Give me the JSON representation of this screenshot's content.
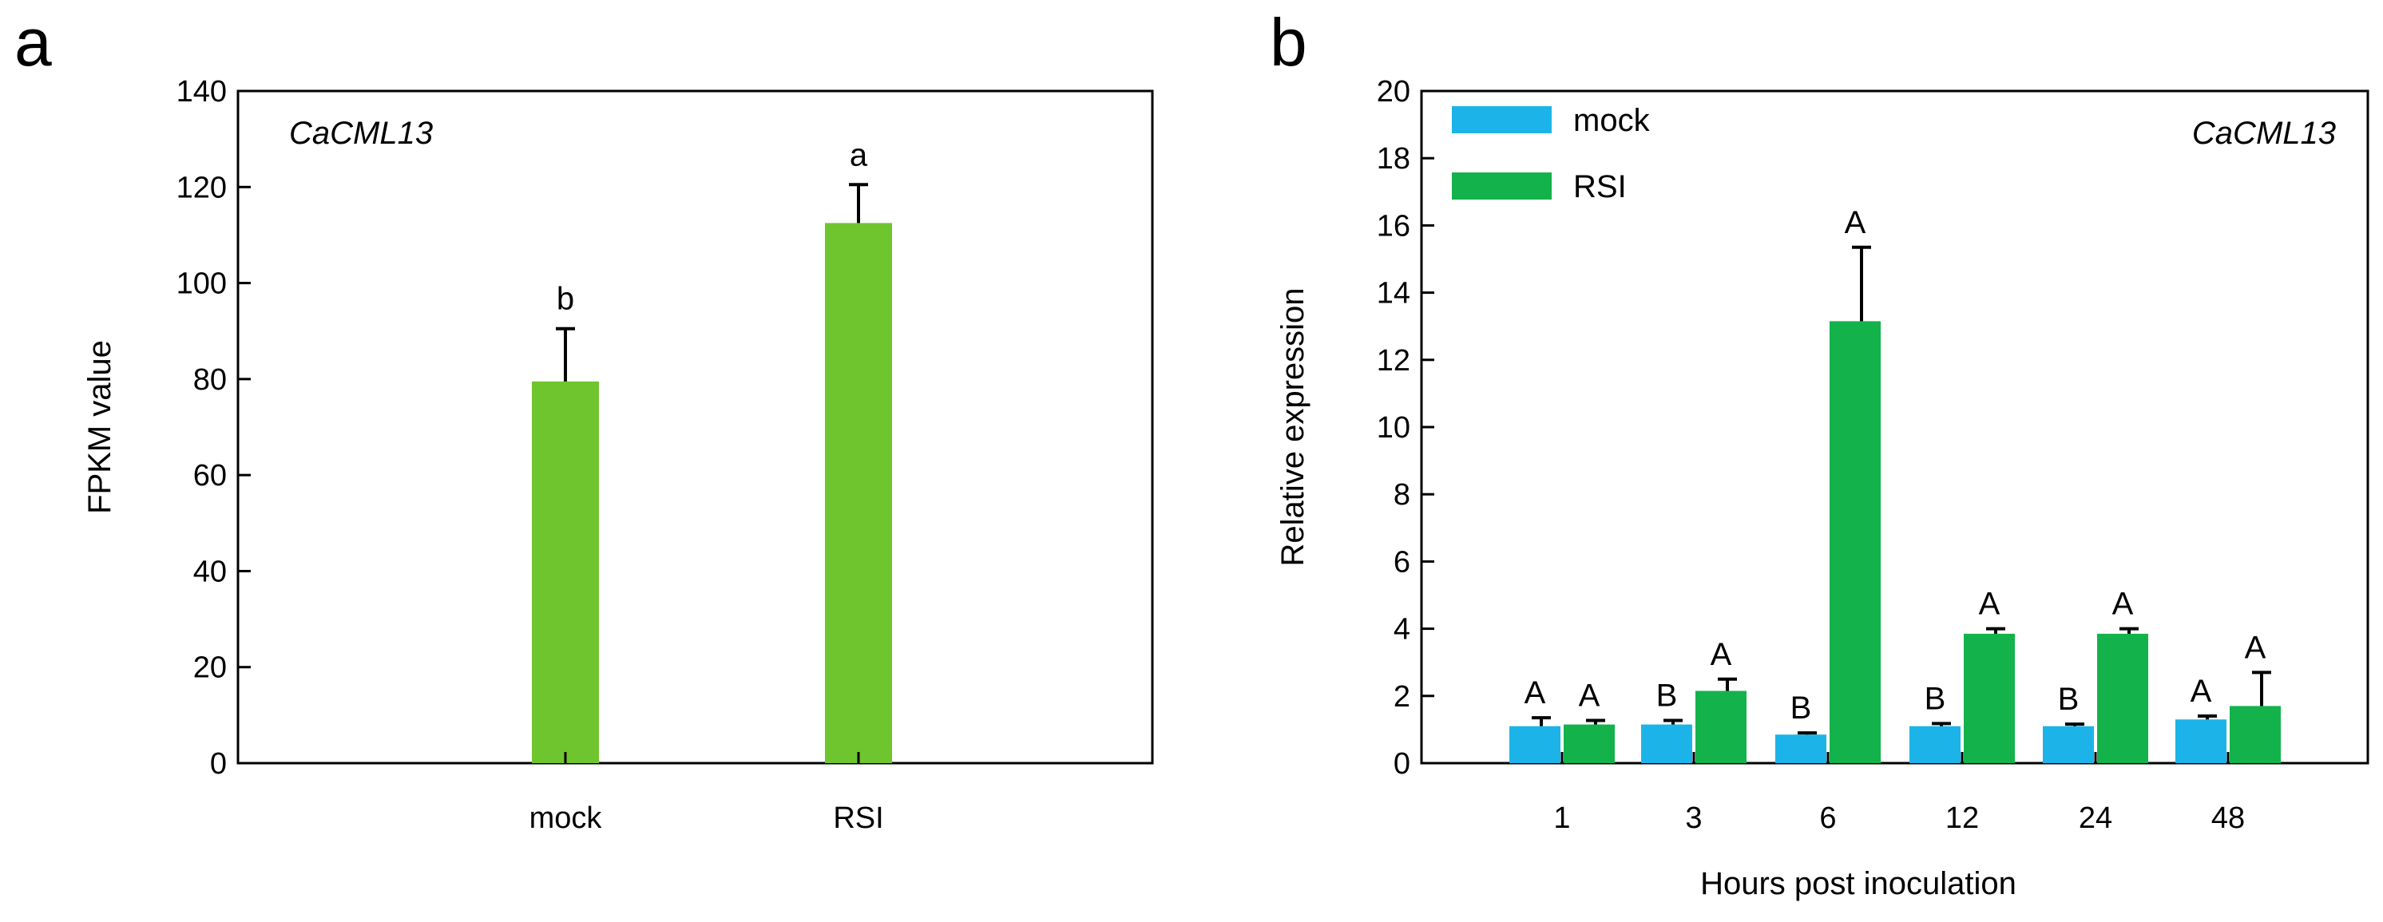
{
  "chart_data": [
    {
      "panel": "a",
      "type": "bar",
      "gene": "CaCML13",
      "xlabel": "",
      "ylabel": "FPKM value",
      "ylim": [
        0,
        140
      ],
      "yticks": [
        0,
        20,
        40,
        60,
        80,
        100,
        120,
        140
      ],
      "categories": [
        "mock",
        "RSI"
      ],
      "values": [
        79.5,
        112.5
      ],
      "errors": [
        11,
        8
      ],
      "significance": [
        "b",
        "a"
      ],
      "bar_color": "#6fc52d",
      "grid": false
    },
    {
      "panel": "b",
      "type": "bar",
      "gene": "CaCML13",
      "xlabel": "Hours post inoculation",
      "ylabel": "Relative expression",
      "ylim": [
        0,
        20
      ],
      "yticks": [
        0,
        2,
        4,
        6,
        8,
        10,
        12,
        14,
        16,
        18,
        20
      ],
      "categories": [
        "1",
        "3",
        "6",
        "12",
        "24",
        "48"
      ],
      "legend_position": "top-left",
      "grid": false,
      "series": [
        {
          "name": "mock",
          "color": "#1cb4e8",
          "values": [
            1.1,
            1.15,
            0.85,
            1.1,
            1.1,
            1.3
          ],
          "errors": [
            0.25,
            0.12,
            0.05,
            0.08,
            0.06,
            0.1
          ],
          "significance": [
            "A",
            "B",
            "B",
            "B",
            "B",
            "A"
          ]
        },
        {
          "name": "RSI",
          "color": "#13b24b",
          "values": [
            1.15,
            2.15,
            13.15,
            3.85,
            3.85,
            1.7
          ],
          "errors": [
            0.12,
            0.35,
            2.2,
            0.15,
            0.15,
            1.0
          ],
          "significance": [
            "A",
            "A",
            "A",
            "A",
            "A",
            "A"
          ]
        }
      ]
    }
  ]
}
